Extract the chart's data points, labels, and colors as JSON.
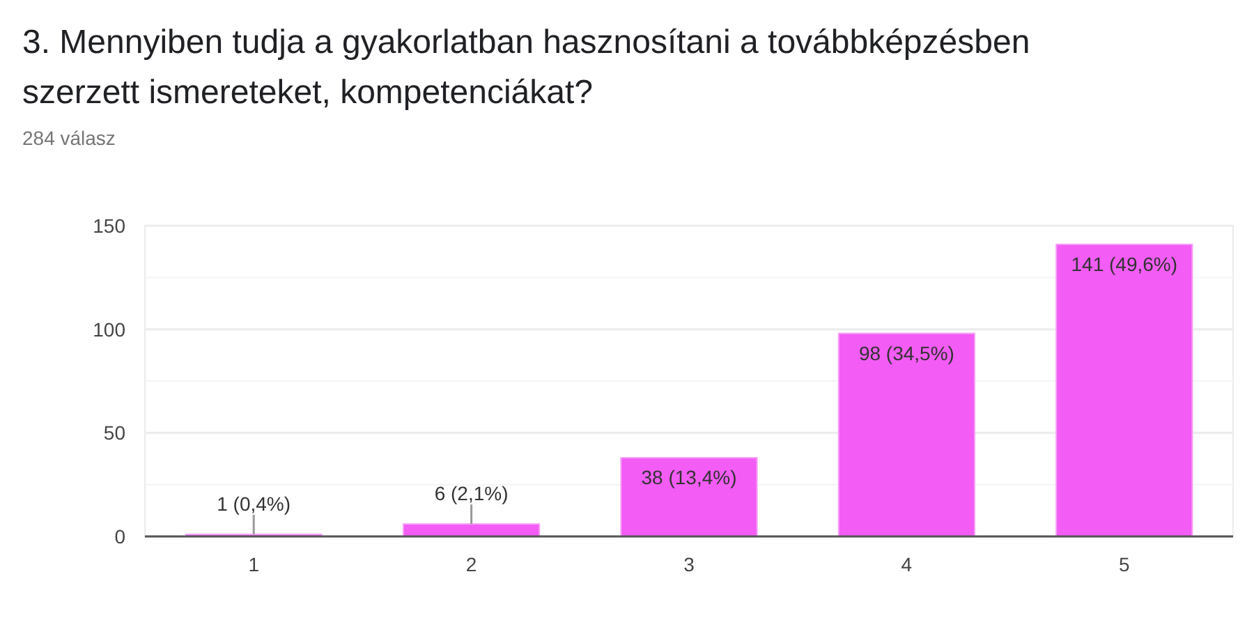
{
  "chart_data": {
    "type": "bar",
    "title": "3. Mennyiben tudja a gyakorlatban hasznosítani a továbbképzésben szerzett ismereteket, kompetenciákat?",
    "subtitle": "284 válasz",
    "categories": [
      "1",
      "2",
      "3",
      "4",
      "5"
    ],
    "values": [
      1,
      6,
      38,
      98,
      141
    ],
    "color": "#f35cf5",
    "value_labels": [
      "1 (0,4%)",
      "6 (2,1%)",
      "38 (13,4%)",
      "98 (34,5%)",
      "141 (49,6%)"
    ],
    "ylim": [
      0,
      150
    ],
    "yticks": [
      0,
      {
        "value": 25,
        "label": null
      },
      50,
      {
        "value": 75,
        "label": null
      },
      100,
      {
        "value": 125,
        "label": null
      },
      150
    ],
    "grid": "y"
  }
}
